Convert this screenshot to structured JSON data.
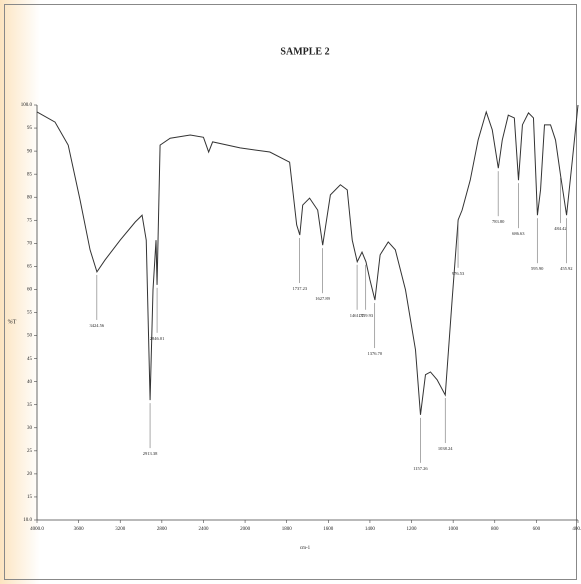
{
  "chart_data": {
    "type": "line",
    "title": "SAMPLE 2",
    "x_label": "cm-1",
    "y_label": "%T",
    "color": "#333333",
    "xlim": [
      4000,
      400
    ],
    "ylim": [
      10,
      100
    ],
    "xticks": [
      {
        "value": 4000,
        "label": "4000.0"
      },
      3600,
      3200,
      2800,
      2400,
      2000,
      1800,
      1600,
      1400,
      1200,
      1000,
      800,
      600,
      {
        "value": 400,
        "label": "400.0"
      }
    ],
    "yticks": [
      {
        "value": 100,
        "label": "100.0"
      },
      95,
      90,
      85,
      80,
      75,
      70,
      65,
      60,
      55,
      50,
      45,
      40,
      35,
      30,
      25,
      20,
      15,
      {
        "value": 10,
        "label": "10.0"
      }
    ],
    "x": [
      4000,
      3827,
      3700,
      3586,
      3490,
      3424,
      3346,
      3200,
      3057,
      2990,
      2950,
      2913,
      2885,
      2856,
      2846,
      2817,
      2720,
      2527,
      2400,
      2350,
      2312,
      2048,
      1881,
      1786,
      1752,
      1737,
      1723,
      1690,
      1651,
      1627,
      1590,
      1542,
      1509,
      1485,
      1461,
      1438,
      1419,
      1400,
      1376,
      1351,
      1312,
      1278,
      1229,
      1181,
      1157,
      1133,
      1109,
      1077,
      1038,
      1005,
      976,
      957,
      918,
      880,
      841,
      812,
      783,
      764,
      735,
      706,
      686,
      667,
      638,
      614,
      595,
      580,
      561,
      532,
      508,
      484,
      455,
      427,
      400
    ],
    "values": [
      98.5,
      96.3,
      91.3,
      79.4,
      68.6,
      63.8,
      66.4,
      70.7,
      74.6,
      76.1,
      70.7,
      36,
      59.9,
      70.7,
      61,
      91.3,
      92.8,
      93.5,
      93,
      89.8,
      92,
      90.7,
      89.8,
      87.6,
      74,
      71.8,
      78.3,
      79.8,
      77.2,
      69.6,
      80.5,
      82.7,
      81.6,
      70.7,
      66,
      68.1,
      66,
      62.1,
      57.7,
      67.5,
      70.3,
      68.6,
      59.9,
      46.9,
      32.8,
      41.5,
      42.1,
      40.4,
      37.1,
      57.7,
      75.1,
      77.2,
      83.7,
      92.4,
      98.5,
      94.6,
      86.3,
      92.4,
      97.8,
      97.2,
      83.7,
      95.7,
      98.3,
      97.2,
      76.1,
      81.6,
      95.7,
      95.7,
      92.4,
      84.8,
      76.1,
      88.1,
      100
    ],
    "annotations": [
      {
        "text": "3424.56",
        "x": 3424.56,
        "y": 63.8
      },
      {
        "text": "2913.38",
        "x": 2913.38,
        "y": 36
      },
      {
        "text": "2846.01",
        "x": 2846.01,
        "y": 61
      },
      {
        "text": "1737.23",
        "x": 1737.23,
        "y": 71.8
      },
      {
        "text": "1627.89",
        "x": 1627.89,
        "y": 69.6
      },
      {
        "text": "1461.77",
        "x": 1461.77,
        "y": 66
      },
      {
        "text": "1419.93",
        "x": 1419.93,
        "y": 66
      },
      {
        "text": "1376.70",
        "x": 1376.7,
        "y": 57.7
      },
      {
        "text": "1157.26",
        "x": 1157.26,
        "y": 32.8
      },
      {
        "text": "1038.24",
        "x": 1038.24,
        "y": 37.1
      },
      {
        "text": "976.53",
        "x": 976.53,
        "y": 75.1
      },
      {
        "text": "783.80",
        "x": 783.8,
        "y": 86.3
      },
      {
        "text": "686.63",
        "x": 686.63,
        "y": 83.7
      },
      {
        "text": "595.90",
        "x": 595.9,
        "y": 76.1
      },
      {
        "text": "484.42",
        "x": 484.42,
        "y": 84.8
      },
      {
        "text": "455.92",
        "x": 455.92,
        "y": 76.1
      }
    ]
  }
}
